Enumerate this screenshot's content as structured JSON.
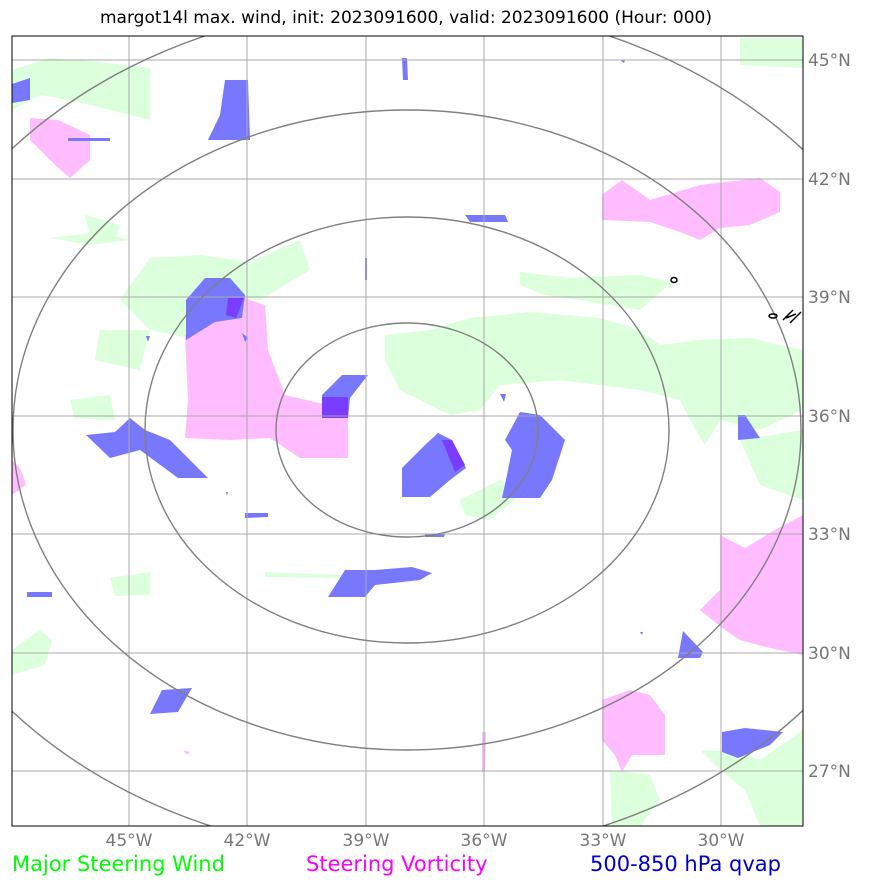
{
  "title": "margot14l max. wind, init: 2023091600, valid: 2023091600 (Hour: 000)",
  "lat_labels": [
    "45°N",
    "42°N",
    "39°N",
    "36°N",
    "33°N",
    "30°N",
    "27°N"
  ],
  "lon_labels": [
    "45°W",
    "42°W",
    "39°W",
    "36°W",
    "33°W",
    "30°W"
  ],
  "legend": [
    {
      "label": "Major Steering Wind",
      "color": "#00ff00"
    },
    {
      "label": "Steering Vorticity",
      "color": "#ff00ff"
    },
    {
      "label": "500-850 hPa qvap",
      "color": "#0000cc"
    }
  ],
  "colors": {
    "steering_wind_fill": "#dcffdc",
    "vorticity_fill": "#ffbcff",
    "qvap_fill": "#7878ff",
    "qvap_overlap": "#7a3cff",
    "range_rings": "#808080",
    "gridlines": "#a8a8a8"
  },
  "range_ring_count": 4
}
